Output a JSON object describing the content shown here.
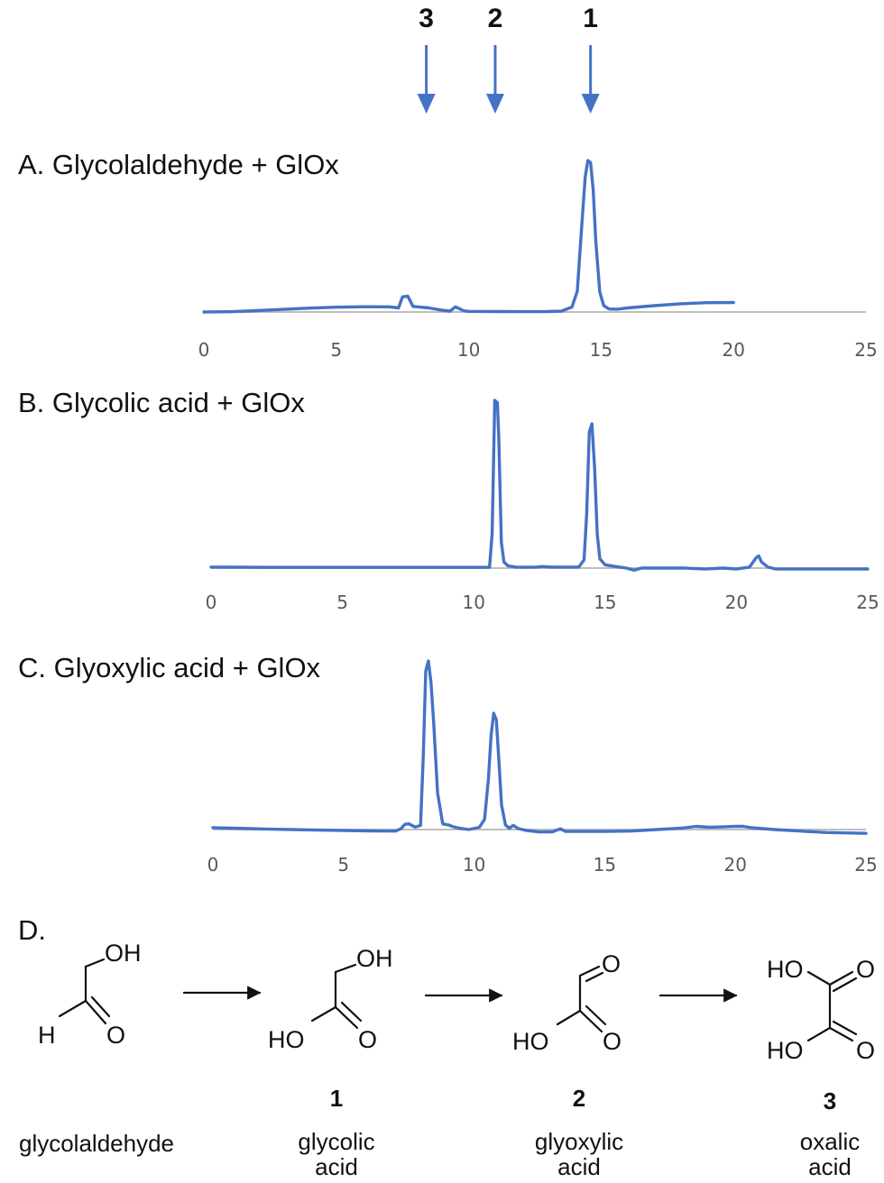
{
  "colors": {
    "trace": "#4472C4",
    "baseline": "#BFBFBF",
    "text": "#111111",
    "tick_text": "#595959"
  },
  "markers": [
    {
      "label": "3",
      "x": 8.4
    },
    {
      "label": "2",
      "x": 11.0
    },
    {
      "label": "1",
      "x": 14.6
    }
  ],
  "chart_data": [
    {
      "type": "line",
      "title": "A. Glycolaldehyde + GlOx",
      "xlim": [
        0,
        25
      ],
      "xticks": [
        "0",
        "5",
        "10",
        "15",
        "20",
        "25"
      ],
      "grid": false,
      "series": [
        {
          "x": [
            0,
            1,
            2,
            3,
            4,
            5,
            6,
            7,
            7.35,
            7.5,
            7.7,
            7.9,
            8.5,
            9,
            9.3,
            9.5,
            9.8,
            10,
            11,
            12,
            13,
            13.5,
            13.9,
            14.1,
            14.25,
            14.4,
            14.5,
            14.6,
            14.7,
            14.8,
            14.95,
            15.1,
            15.3,
            15.6,
            16,
            17,
            18,
            19,
            20
          ],
          "y": [
            0,
            0.2,
            0.9,
            1.7,
            2.5,
            3.1,
            3.4,
            3.3,
            2.6,
            9.8,
            10.2,
            3.6,
            2.6,
            1.1,
            0.6,
            3.3,
            0.9,
            0.4,
            0.3,
            0.25,
            0.3,
            0.5,
            3.2,
            13.4,
            51.3,
            87.5,
            97.9,
            96.6,
            79.1,
            45.7,
            12.9,
            4.1,
            1.9,
            1.8,
            2.6,
            4.1,
            5.3,
            6.0,
            6.1
          ]
        }
      ]
    },
    {
      "type": "line",
      "title": "B. Glycolic acid + GlOx",
      "xlim": [
        0,
        25
      ],
      "xticks": [
        "0",
        "5",
        "10",
        "15",
        "20",
        "25"
      ],
      "grid": false,
      "series": [
        {
          "x": [
            0,
            2,
            4,
            6,
            8,
            9,
            10,
            10.4,
            10.6,
            10.7,
            10.8,
            10.9,
            10.95,
            11.05,
            11.15,
            11.3,
            11.6,
            12,
            12.4,
            12.6,
            13,
            13.5,
            14,
            14.2,
            14.3,
            14.4,
            14.5,
            14.6,
            14.7,
            14.8,
            15,
            15.4,
            15.8,
            16.1,
            16.4,
            17,
            18,
            18.8,
            19.5,
            20,
            20.5,
            20.75,
            20.85,
            20.95,
            21.2,
            21.5,
            22.5,
            23.5,
            25
          ],
          "y": [
            0.6,
            0.4,
            0.4,
            0.4,
            0.4,
            0.4,
            0.4,
            0.4,
            0.5,
            20.3,
            98.1,
            96.8,
            77.1,
            15.1,
            3.5,
            1.3,
            0.6,
            0.5,
            0.6,
            0.9,
            0.6,
            0.6,
            0.6,
            4.8,
            31.9,
            79.6,
            84.4,
            58.5,
            19.9,
            5.4,
            1.9,
            0.9,
            0.0,
            -1.2,
            0.0,
            0.0,
            0.0,
            -0.6,
            0.0,
            -0.6,
            0.6,
            6.0,
            7.1,
            3.6,
            0.6,
            -0.6,
            -0.6,
            -0.6,
            -0.6
          ]
        }
      ]
    },
    {
      "type": "line",
      "title": "C. Glyoxylic acid + GlOx",
      "xlim": [
        0,
        25
      ],
      "xticks": [
        "0",
        "5",
        "10",
        "15",
        "20",
        "25"
      ],
      "grid": false,
      "series": [
        {
          "x": [
            0,
            2,
            4,
            6,
            7,
            7.2,
            7.35,
            7.5,
            7.75,
            7.95,
            8.05,
            8.15,
            8.25,
            8.35,
            8.45,
            8.6,
            8.8,
            9.05,
            9.2,
            9.4,
            9.8,
            10.2,
            10.4,
            10.55,
            10.65,
            10.75,
            10.85,
            10.95,
            11.05,
            11.2,
            11.35,
            11.5,
            11.7,
            12,
            12.5,
            13,
            13.3,
            13.5,
            14,
            15,
            16,
            17,
            18,
            18.5,
            19,
            19.5,
            20,
            20.3,
            20.6,
            21.5,
            22.5,
            23.5,
            25
          ],
          "y": [
            1.1,
            0.3,
            -0.3,
            -0.8,
            -0.9,
            0.5,
            3.0,
            3.3,
            1.4,
            2.4,
            40.3,
            91.6,
            97.3,
            84.8,
            62.3,
            21.1,
            3.3,
            2.5,
            1.6,
            0.9,
            0.0,
            1.3,
            5.9,
            29.4,
            54.3,
            67.1,
            63.4,
            39.6,
            14.2,
            2.6,
            0.8,
            2.4,
            0.5,
            -0.5,
            -1.4,
            -1.3,
            0.4,
            -1.1,
            -1.1,
            -1.1,
            -0.9,
            0.0,
            0.9,
            1.8,
            1.3,
            1.5,
            1.8,
            1.8,
            1.1,
            0.0,
            -0.9,
            -1.7,
            -2.2
          ]
        }
      ]
    }
  ],
  "panel_d": {
    "title": "D.",
    "labels": {
      "oh": "OH",
      "h": "H",
      "o": "O",
      "ho": "HO"
    },
    "compounds": [
      {
        "number": "",
        "name_lines": [
          "glycolaldehyde"
        ]
      },
      {
        "number": "1",
        "name_lines": [
          "glycolic",
          "acid"
        ]
      },
      {
        "number": "2",
        "name_lines": [
          "glyoxylic",
          "acid"
        ]
      },
      {
        "number": "3",
        "name_lines": [
          "oxalic",
          "acid"
        ]
      }
    ]
  }
}
